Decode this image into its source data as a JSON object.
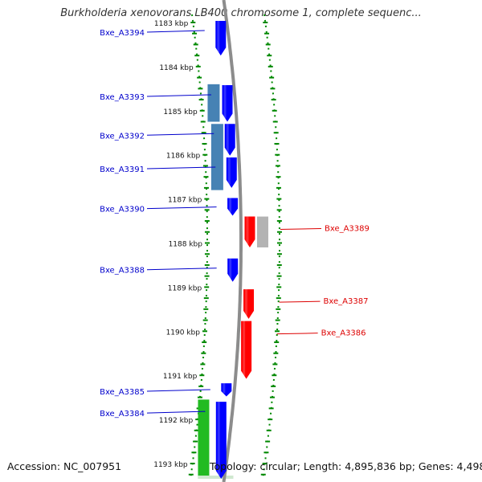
{
  "title": "Burkholderia xenovorans LB400 chromosome 1, complete sequenc...",
  "accession_text": "Accession: NC_007951",
  "summary_text": "Topology: circular; Length: 4,895,836 bp; Genes: 4,498",
  "colors": {
    "forward_gene": "#0000ff",
    "reverse_gene": "#ff0000",
    "steel_feature": "#4682b4",
    "green_feature": "#22bb22",
    "gray_feature": "#b3b3b3",
    "genome_line": "#8c8c8c",
    "tick_green": "#008800",
    "forward_label": "#0000cc",
    "reverse_label": "#dd0000"
  },
  "kbp_scale": [
    {
      "kbp": 1183,
      "label": "1183 kbp"
    },
    {
      "kbp": 1184,
      "label": "1184 kbp"
    },
    {
      "kbp": 1185,
      "label": "1185 kbp"
    },
    {
      "kbp": 1186,
      "label": "1186 kbp"
    },
    {
      "kbp": 1187,
      "label": "1187 kbp"
    },
    {
      "kbp": 1188,
      "label": "1188 kbp"
    },
    {
      "kbp": 1189,
      "label": "1189 kbp"
    },
    {
      "kbp": 1190,
      "label": "1190 kbp"
    },
    {
      "kbp": 1191,
      "label": "1191 kbp"
    },
    {
      "kbp": 1192,
      "label": "1192 kbp"
    },
    {
      "kbp": 1193,
      "label": "1193 kbp"
    }
  ],
  "genes": [
    {
      "name": "Bxe_A3394",
      "strand": "+",
      "start_kbp": 1182.95,
      "end_kbp": 1183.75
    },
    {
      "name": "Bxe_A3393",
      "strand": "+",
      "start_kbp": 1184.42,
      "end_kbp": 1185.25
    },
    {
      "name": "Bxe_A3392",
      "strand": "+",
      "start_kbp": 1185.3,
      "end_kbp": 1186.02
    },
    {
      "name": "Bxe_A3391",
      "strand": "+",
      "start_kbp": 1186.06,
      "end_kbp": 1186.75
    },
    {
      "name": "Bxe_A3390",
      "strand": "+",
      "start_kbp": 1186.98,
      "end_kbp": 1187.38
    },
    {
      "name": "Bxe_A3389",
      "strand": "-",
      "start_kbp": 1187.4,
      "end_kbp": 1188.1
    },
    {
      "name": "Bxe_A3388",
      "strand": "+",
      "start_kbp": 1188.35,
      "end_kbp": 1188.88
    },
    {
      "name": "Bxe_A3387",
      "strand": "-",
      "start_kbp": 1189.05,
      "end_kbp": 1189.72
    },
    {
      "name": "Bxe_A3386",
      "strand": "-",
      "start_kbp": 1189.77,
      "end_kbp": 1191.08
    },
    {
      "name": "Bxe_A3385",
      "strand": "+",
      "start_kbp": 1191.18,
      "end_kbp": 1191.48
    },
    {
      "name": "Bxe_A3384",
      "strand": "+",
      "start_kbp": 1191.6,
      "end_kbp": 1193.35
    }
  ],
  "other_features": [
    {
      "kind": "steel",
      "start_kbp": 1184.4,
      "end_kbp": 1185.25
    },
    {
      "kind": "steel",
      "start_kbp": 1185.3,
      "end_kbp": 1186.8
    },
    {
      "kind": "green",
      "start_kbp": 1191.55,
      "end_kbp": 1193.35
    },
    {
      "kind": "gray",
      "start_kbp": 1187.4,
      "end_kbp": 1188.1
    }
  ]
}
